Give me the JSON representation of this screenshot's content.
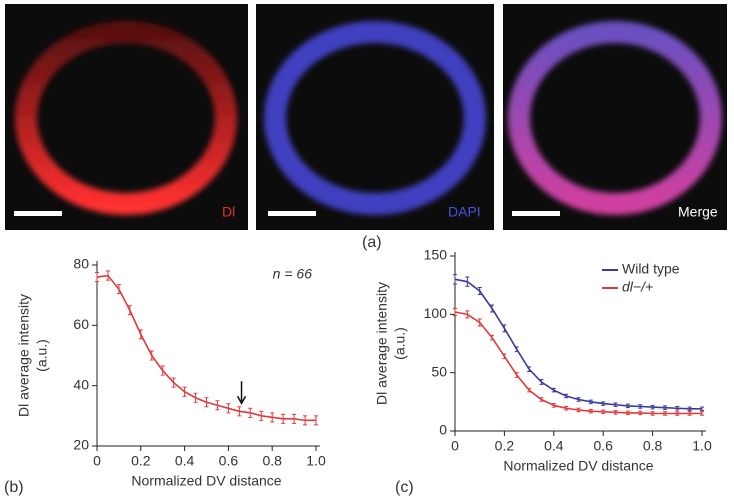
{
  "images": [
    {
      "caption": "Dl"
    },
    {
      "caption": "DAPI"
    },
    {
      "caption": "Merge"
    }
  ],
  "panel_labels": [
    "(a)",
    "(b)",
    "(c)"
  ],
  "chart_data": [
    {
      "type": "line",
      "xlabel": "Normalized DV distance",
      "ylabel": [
        "Dl average intensity",
        "(a.u.)"
      ],
      "annotation": "n = 66",
      "arrow_x": 0.66,
      "x": [
        0,
        0.05,
        0.1,
        0.15,
        0.2,
        0.25,
        0.3,
        0.35,
        0.4,
        0.45,
        0.5,
        0.55,
        0.6,
        0.65,
        0.7,
        0.75,
        0.8,
        0.85,
        0.9,
        0.95,
        1
      ],
      "xlim": [
        0,
        1
      ],
      "xticks": [
        0,
        0.2,
        0.4,
        0.6,
        0.8,
        {
          "value": 1,
          "label": "1.0"
        }
      ],
      "ylim": [
        20,
        80
      ],
      "yticks": [
        20,
        40,
        60,
        80
      ],
      "series": [
        {
          "name": null,
          "color": "#e03a3a",
          "values": [
            76,
            76.5,
            72,
            65,
            57,
            50,
            45,
            41,
            38,
            36,
            34.5,
            33.5,
            32.5,
            31.5,
            31,
            30,
            29.5,
            29,
            29,
            28.5,
            28.5
          ],
          "errors": [
            1.5,
            1.5,
            1.5,
            1.5,
            1.5,
            1.5,
            1.5,
            1.5,
            1.5,
            1.5,
            1.5,
            1.5,
            1.5,
            1.5,
            1.5,
            1.5,
            1.5,
            1.5,
            1.5,
            1.5,
            1.5
          ]
        }
      ]
    },
    {
      "type": "line",
      "xlabel": "Normalized DV distance",
      "ylabel": [
        "Dl average intensity",
        "(a.u.)"
      ],
      "legend": "upper right",
      "x": [
        0,
        0.05,
        0.1,
        0.15,
        0.2,
        0.25,
        0.3,
        0.35,
        0.4,
        0.45,
        0.5,
        0.55,
        0.6,
        0.65,
        0.7,
        0.75,
        0.8,
        0.85,
        0.9,
        0.95,
        1
      ],
      "xlim": [
        0,
        1
      ],
      "xticks": [
        0,
        0.2,
        0.4,
        0.6,
        0.8,
        {
          "value": 1,
          "label": "1.0"
        }
      ],
      "ylim": [
        0,
        150
      ],
      "yticks": [
        0,
        50,
        100,
        150
      ],
      "series": [
        {
          "name": "Wild type",
          "color": "#3a3a9a",
          "values": [
            130,
            128,
            120,
            105,
            88,
            70,
            53,
            42,
            35,
            30,
            27,
            25,
            23.5,
            22.5,
            21.5,
            21,
            20.5,
            20,
            19.5,
            19,
            19
          ],
          "errors": [
            4,
            4,
            3,
            3,
            3,
            2,
            2,
            2,
            1.5,
            1.5,
            1.5,
            1.5,
            1.5,
            1.5,
            1.5,
            1.5,
            1.5,
            1.5,
            1.5,
            1.5,
            1.5
          ]
        },
        {
          "name": "dl−/+",
          "color": "#e03a3a",
          "values": [
            102,
            100,
            93,
            80,
            64,
            48,
            35,
            27,
            22,
            19.5,
            18,
            17,
            16.5,
            16,
            15.5,
            15.5,
            15,
            15,
            15,
            15,
            15
          ],
          "errors": [
            3,
            3,
            3,
            2,
            2,
            2,
            1.5,
            1.5,
            1.5,
            1.5,
            1.5,
            1.5,
            1.5,
            1.5,
            1.5,
            1.5,
            1.5,
            1.5,
            1.5,
            1.5,
            1.5
          ]
        }
      ]
    }
  ]
}
